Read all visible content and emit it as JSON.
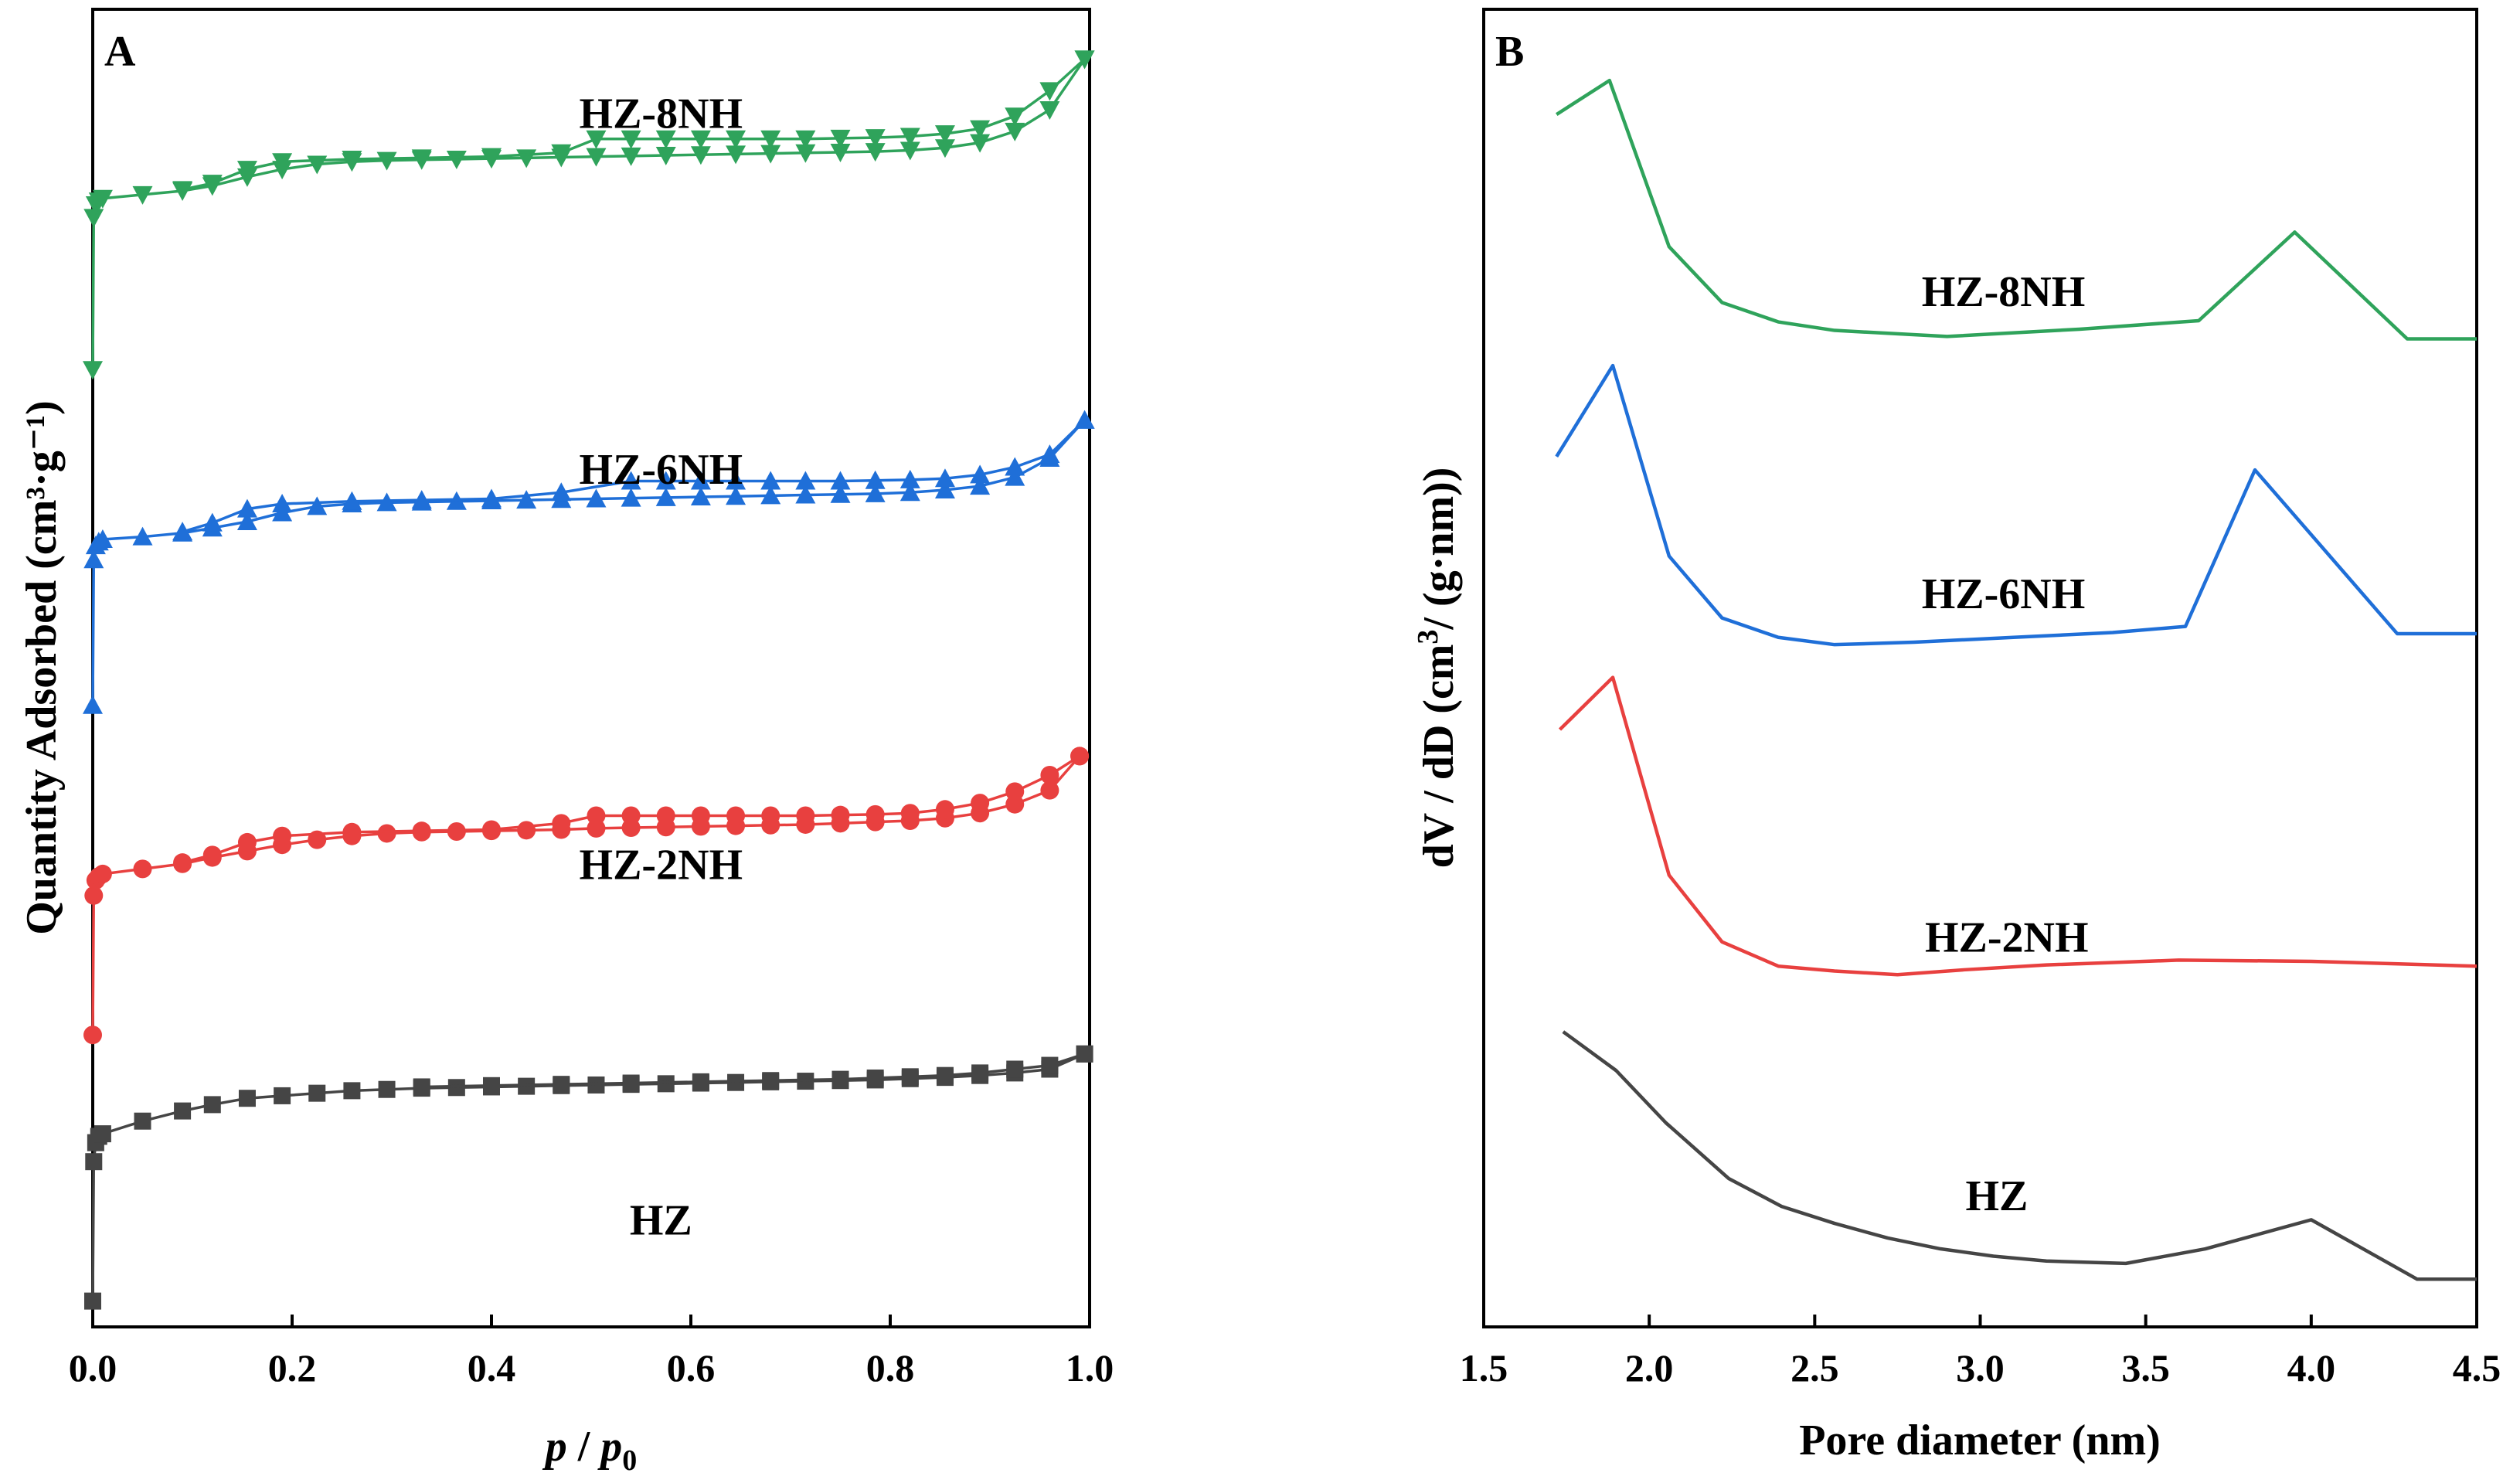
{
  "chart_data": [
    {
      "panel": "A",
      "type": "line",
      "title": "",
      "xlabel_italic_p": "p",
      "xlabel_slash": " / ",
      "xlabel_italic_p0": "p",
      "xlabel_sub": "0",
      "ylabel": "Quantity Adsorbed (cm³·g⁻¹)",
      "xlim": [
        0,
        1.0
      ],
      "xticks": [
        "0.0",
        "0.2",
        "0.4",
        "0.6",
        "0.8",
        "1.0"
      ],
      "xtick_values": [
        0,
        0.2,
        0.4,
        0.6,
        0.8,
        1.0
      ],
      "ylim": [
        0,
        100
      ],
      "series": [
        {
          "name": "HZ",
          "color": "#454545",
          "marker": "square",
          "adsorption": [
            [
              0.0,
              1
            ],
            [
              0.001,
              12
            ],
            [
              0.003,
              13.5
            ],
            [
              0.006,
              14
            ],
            [
              0.01,
              14.2
            ],
            [
              0.05,
              15.2
            ],
            [
              0.09,
              16
            ],
            [
              0.12,
              16.5
            ],
            [
              0.155,
              17
            ],
            [
              0.19,
              17.2
            ],
            [
              0.225,
              17.4
            ],
            [
              0.26,
              17.6
            ],
            [
              0.295,
              17.7
            ],
            [
              0.33,
              17.8
            ],
            [
              0.365,
              17.85
            ],
            [
              0.4,
              17.9
            ],
            [
              0.435,
              17.95
            ],
            [
              0.47,
              18
            ],
            [
              0.505,
              18.05
            ],
            [
              0.54,
              18.1
            ],
            [
              0.575,
              18.15
            ],
            [
              0.61,
              18.2
            ],
            [
              0.645,
              18.25
            ],
            [
              0.68,
              18.3
            ],
            [
              0.715,
              18.35
            ],
            [
              0.75,
              18.4
            ],
            [
              0.785,
              18.45
            ],
            [
              0.82,
              18.55
            ],
            [
              0.855,
              18.65
            ],
            [
              0.89,
              18.8
            ],
            [
              0.925,
              19
            ],
            [
              0.96,
              19.3
            ],
            [
              0.995,
              20.5
            ]
          ],
          "desorption": [
            [
              0.995,
              20.5
            ],
            [
              0.96,
              19.6
            ],
            [
              0.925,
              19.3
            ],
            [
              0.89,
              19
            ],
            [
              0.855,
              18.8
            ],
            [
              0.82,
              18.7
            ],
            [
              0.785,
              18.6
            ],
            [
              0.75,
              18.5
            ],
            [
              0.68,
              18.4
            ],
            [
              0.61,
              18.3
            ],
            [
              0.54,
              18.2
            ],
            [
              0.47,
              18.1
            ],
            [
              0.4,
              18
            ],
            [
              0.33,
              17.9
            ]
          ],
          "label_pos": [
            0.57,
            0.93
          ]
        },
        {
          "name": "HZ-2NH",
          "color": "#e8403f",
          "marker": "circle",
          "adsorption": [
            [
              0.0,
              22
            ],
            [
              0.001,
              33
            ],
            [
              0.003,
              34.2
            ],
            [
              0.006,
              34.5
            ],
            [
              0.01,
              34.7
            ],
            [
              0.05,
              35.1
            ],
            [
              0.09,
              35.5
            ],
            [
              0.12,
              36
            ],
            [
              0.155,
              36.5
            ],
            [
              0.19,
              37
            ],
            [
              0.225,
              37.4
            ],
            [
              0.26,
              37.7
            ],
            [
              0.295,
              37.9
            ],
            [
              0.33,
              38
            ],
            [
              0.365,
              38.05
            ],
            [
              0.4,
              38.1
            ],
            [
              0.435,
              38.15
            ],
            [
              0.47,
              38.2
            ],
            [
              0.505,
              38.3
            ],
            [
              0.54,
              38.35
            ],
            [
              0.575,
              38.4
            ],
            [
              0.61,
              38.45
            ],
            [
              0.645,
              38.5
            ],
            [
              0.68,
              38.55
            ],
            [
              0.715,
              38.6
            ],
            [
              0.75,
              38.7
            ],
            [
              0.785,
              38.8
            ],
            [
              0.82,
              38.9
            ],
            [
              0.855,
              39.1
            ],
            [
              0.89,
              39.5
            ],
            [
              0.925,
              40.2
            ],
            [
              0.96,
              41.3
            ],
            [
              0.99,
              44
            ]
          ],
          "desorption": [
            [
              0.99,
              44
            ],
            [
              0.96,
              42.5
            ],
            [
              0.925,
              41.2
            ],
            [
              0.89,
              40.3
            ],
            [
              0.855,
              39.8
            ],
            [
              0.82,
              39.5
            ],
            [
              0.785,
              39.4
            ],
            [
              0.75,
              39.35
            ],
            [
              0.715,
              39.3
            ],
            [
              0.68,
              39.3
            ],
            [
              0.645,
              39.3
            ],
            [
              0.61,
              39.3
            ],
            [
              0.575,
              39.3
            ],
            [
              0.54,
              39.3
            ],
            [
              0.505,
              39.3
            ],
            [
              0.47,
              38.7
            ],
            [
              0.4,
              38.2
            ],
            [
              0.33,
              38.1
            ],
            [
              0.26,
              38
            ],
            [
              0.19,
              37.7
            ],
            [
              0.155,
              37.2
            ],
            [
              0.12,
              36.2
            ],
            [
              0.09,
              35.6
            ]
          ],
          "label_pos": [
            0.57,
            0.66
          ]
        },
        {
          "name": "HZ-6NH",
          "color": "#1f6fd8",
          "marker": "triangle-up",
          "adsorption": [
            [
              0.0,
              48
            ],
            [
              0.001,
              59.5
            ],
            [
              0.003,
              60.6
            ],
            [
              0.006,
              60.9
            ],
            [
              0.01,
              61.1
            ],
            [
              0.05,
              61.3
            ],
            [
              0.09,
              61.6
            ],
            [
              0.12,
              62
            ],
            [
              0.155,
              62.5
            ],
            [
              0.19,
              63.2
            ],
            [
              0.225,
              63.7
            ],
            [
              0.26,
              63.9
            ],
            [
              0.295,
              64
            ],
            [
              0.33,
              64.05
            ],
            [
              0.365,
              64.1
            ],
            [
              0.4,
              64.15
            ],
            [
              0.435,
              64.2
            ],
            [
              0.47,
              64.25
            ],
            [
              0.505,
              64.3
            ],
            [
              0.54,
              64.35
            ],
            [
              0.575,
              64.4
            ],
            [
              0.61,
              64.45
            ],
            [
              0.645,
              64.5
            ],
            [
              0.68,
              64.55
            ],
            [
              0.715,
              64.6
            ],
            [
              0.75,
              64.65
            ],
            [
              0.785,
              64.7
            ],
            [
              0.82,
              64.8
            ],
            [
              0.855,
              65
            ],
            [
              0.89,
              65.3
            ],
            [
              0.925,
              66
            ],
            [
              0.96,
              67.5
            ],
            [
              0.995,
              70.5
            ]
          ],
          "desorption": [
            [
              0.995,
              70.5
            ],
            [
              0.96,
              67.8
            ],
            [
              0.925,
              66.8
            ],
            [
              0.89,
              66.2
            ],
            [
              0.855,
              65.9
            ],
            [
              0.82,
              65.8
            ],
            [
              0.785,
              65.75
            ],
            [
              0.75,
              65.7
            ],
            [
              0.715,
              65.7
            ],
            [
              0.68,
              65.7
            ],
            [
              0.645,
              65.7
            ],
            [
              0.61,
              65.7
            ],
            [
              0.575,
              65.7
            ],
            [
              0.54,
              65.7
            ],
            [
              0.47,
              64.8
            ],
            [
              0.4,
              64.3
            ],
            [
              0.33,
              64.2
            ],
            [
              0.26,
              64.1
            ],
            [
              0.19,
              63.9
            ],
            [
              0.155,
              63.5
            ],
            [
              0.12,
              62.4
            ],
            [
              0.09,
              61.7
            ]
          ],
          "label_pos": [
            0.57,
            0.36
          ]
        },
        {
          "name": "HZ-8NH",
          "color": "#2fa35b",
          "marker": "triangle-down",
          "adsorption": [
            [
              0.0,
              74.5
            ],
            [
              0.001,
              86.5
            ],
            [
              0.003,
              87.5
            ],
            [
              0.006,
              87.8
            ],
            [
              0.01,
              88
            ],
            [
              0.05,
              88.3
            ],
            [
              0.09,
              88.6
            ],
            [
              0.12,
              89
            ],
            [
              0.155,
              89.7
            ],
            [
              0.19,
              90.3
            ],
            [
              0.225,
              90.7
            ],
            [
              0.26,
              90.9
            ],
            [
              0.295,
              91
            ],
            [
              0.33,
              91.05
            ],
            [
              0.365,
              91.1
            ],
            [
              0.4,
              91.15
            ],
            [
              0.435,
              91.2
            ],
            [
              0.47,
              91.25
            ],
            [
              0.505,
              91.3
            ],
            [
              0.54,
              91.35
            ],
            [
              0.575,
              91.4
            ],
            [
              0.61,
              91.45
            ],
            [
              0.645,
              91.5
            ],
            [
              0.68,
              91.55
            ],
            [
              0.715,
              91.6
            ],
            [
              0.75,
              91.65
            ],
            [
              0.785,
              91.7
            ],
            [
              0.82,
              91.8
            ],
            [
              0.855,
              92
            ],
            [
              0.89,
              92.4
            ],
            [
              0.925,
              93.3
            ],
            [
              0.96,
              95
            ],
            [
              0.995,
              99
            ]
          ],
          "desorption": [
            [
              0.995,
              99
            ],
            [
              0.96,
              96.5
            ],
            [
              0.925,
              94.5
            ],
            [
              0.89,
              93.5
            ],
            [
              0.855,
              93.1
            ],
            [
              0.82,
              92.9
            ],
            [
              0.785,
              92.8
            ],
            [
              0.75,
              92.75
            ],
            [
              0.715,
              92.7
            ],
            [
              0.68,
              92.7
            ],
            [
              0.645,
              92.7
            ],
            [
              0.61,
              92.7
            ],
            [
              0.575,
              92.7
            ],
            [
              0.54,
              92.7
            ],
            [
              0.505,
              92.7
            ],
            [
              0.47,
              91.6
            ],
            [
              0.4,
              91.3
            ],
            [
              0.33,
              91.2
            ],
            [
              0.26,
              91.1
            ],
            [
              0.19,
              90.9
            ],
            [
              0.155,
              90.3
            ],
            [
              0.12,
              89.2
            ],
            [
              0.09,
              88.7
            ]
          ],
          "label_pos": [
            0.57,
            0.09
          ]
        }
      ]
    },
    {
      "panel": "B",
      "type": "line",
      "title": "",
      "xlabel": "Pore diameter (nm)",
      "ylabel_pre": "dV / dD (cm",
      "ylabel_sup": "3",
      "ylabel_post": "/ (g·nm))",
      "xlim": [
        1.5,
        4.5
      ],
      "xticks": [
        "1.5",
        "2.0",
        "2.5",
        "3.0",
        "3.5",
        "4.0",
        "4.5"
      ],
      "xtick_values": [
        1.5,
        2.0,
        2.5,
        3.0,
        3.5,
        4.0,
        4.5
      ],
      "ylim": [
        0,
        100
      ],
      "series": [
        {
          "name": "HZ",
          "color": "#454545",
          "x": [
            1.74,
            1.9,
            2.05,
            2.24,
            2.4,
            2.56,
            2.72,
            2.88,
            3.04,
            3.2,
            3.44,
            3.68,
            4.0,
            4.32,
            4.5
          ],
          "y": [
            20.7,
            17.5,
            13.2,
            8.6,
            6.3,
            4.9,
            3.7,
            2.8,
            2.2,
            1.8,
            1.6,
            2.8,
            5.2,
            0.3,
            0.3
          ],
          "label_pos": [
            3.05,
            6.0
          ]
        },
        {
          "name": "HZ-2NH",
          "color": "#e8403f",
          "x": [
            1.73,
            1.89,
            2.06,
            2.22,
            2.39,
            2.56,
            2.75,
            2.95,
            3.2,
            3.6,
            4.0,
            4.5
          ],
          "y": [
            45.6,
            49.9,
            33.6,
            28.1,
            26.1,
            25.7,
            25.4,
            25.8,
            26.2,
            26.6,
            26.5,
            26.1
          ],
          "label_pos": [
            3.08,
            27.3
          ]
        },
        {
          "name": "HZ-6NH",
          "color": "#1f6fd8",
          "x": [
            1.72,
            1.89,
            2.06,
            2.22,
            2.39,
            2.56,
            2.8,
            3.1,
            3.4,
            3.62,
            3.83,
            4.26,
            4.5
          ],
          "y": [
            68.1,
            75.6,
            59.9,
            54.8,
            53.2,
            52.6,
            52.8,
            53.2,
            53.6,
            54.1,
            67.0,
            53.5,
            53.5
          ],
          "label_pos": [
            3.07,
            55.6
          ]
        },
        {
          "name": "HZ-8NH",
          "color": "#2fa35b",
          "x": [
            1.72,
            1.88,
            2.06,
            2.22,
            2.39,
            2.56,
            2.9,
            3.3,
            3.66,
            3.95,
            4.29,
            4.5
          ],
          "y": [
            96.3,
            99.1,
            85.4,
            80.8,
            79.2,
            78.5,
            78.0,
            78.6,
            79.3,
            86.6,
            77.8,
            77.8
          ],
          "label_pos": [
            3.07,
            80.5
          ]
        }
      ]
    }
  ]
}
